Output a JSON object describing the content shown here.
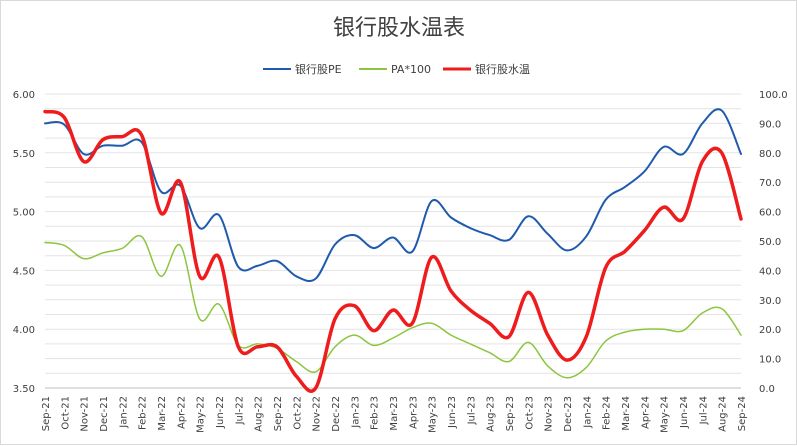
{
  "chart_data": {
    "type": "line",
    "title": "银行股水温表",
    "legend_position": "top",
    "grid": true,
    "x": [
      "Sep-21",
      "Oct-21",
      "Nov-21",
      "Dec-21",
      "Jan-22",
      "Feb-22",
      "Mar-22",
      "Apr-22",
      "May-22",
      "Jun-22",
      "Jul-22",
      "Aug-22",
      "Sep-22",
      "Oct-22",
      "Nov-22",
      "Dec-22",
      "Jan-23",
      "Feb-23",
      "Mar-23",
      "Apr-23",
      "May-23",
      "Jun-23",
      "Jul-23",
      "Aug-23",
      "Sep-23",
      "Oct-23",
      "Nov-23",
      "Dec-23",
      "Jan-24",
      "Feb-24",
      "Mar-24",
      "Apr-24",
      "May-24",
      "Jun-24",
      "Jul-24",
      "Aug-24",
      "Sep-24"
    ],
    "y_left": {
      "min": 3.5,
      "max": 6.0,
      "ticks": [
        "3.50",
        "4.00",
        "4.50",
        "5.00",
        "5.50",
        "6.00"
      ]
    },
    "y_right": {
      "min": 0,
      "max": 100,
      "ticks": [
        "0.0",
        "10.0",
        "20.0",
        "30.0",
        "40.0",
        "50.0",
        "60.0",
        "70.0",
        "80.0",
        "90.0",
        "100.0"
      ]
    },
    "series": [
      {
        "name": "银行股PE",
        "axis": "left",
        "color": "#1f5aad",
        "width": 2,
        "values": [
          5.75,
          5.74,
          5.49,
          5.56,
          5.56,
          5.59,
          5.17,
          5.22,
          4.86,
          4.97,
          4.53,
          4.54,
          4.58,
          4.45,
          4.43,
          4.72,
          4.8,
          4.69,
          4.78,
          4.66,
          5.09,
          4.95,
          4.86,
          4.8,
          4.76,
          4.96,
          4.81,
          4.67,
          4.79,
          5.1,
          5.21,
          5.34,
          5.55,
          5.49,
          5.75,
          5.86,
          5.49
        ]
      },
      {
        "name": "PA*100",
        "axis": "right",
        "color": "#8cc63f",
        "width": 1.5,
        "values": [
          49.5,
          48.5,
          44.0,
          46.0,
          47.5,
          51.5,
          38.0,
          48.5,
          23.5,
          28.5,
          14.5,
          15.0,
          13.5,
          9.0,
          5.5,
          14.0,
          18.0,
          14.5,
          17.0,
          20.5,
          22.0,
          18.0,
          15.0,
          12.0,
          9.0,
          15.5,
          7.5,
          3.5,
          7.0,
          16.0,
          19.0,
          20.0,
          20.0,
          19.5,
          25.5,
          27.0,
          18.0
        ]
      },
      {
        "name": "银行股水温",
        "axis": "right",
        "color": "#ee1c1c",
        "width": 3.5,
        "values": [
          94.0,
          92.0,
          77.0,
          84.5,
          85.5,
          86.0,
          59.5,
          70.0,
          38.0,
          44.5,
          14.0,
          14.0,
          14.0,
          4.0,
          0.0,
          23.5,
          28.0,
          19.5,
          26.5,
          22.0,
          44.5,
          33.0,
          26.5,
          22.0,
          17.5,
          32.5,
          18.0,
          9.5,
          17.5,
          41.0,
          46.5,
          53.5,
          61.5,
          57.5,
          77.0,
          80.0,
          57.5
        ]
      }
    ]
  }
}
